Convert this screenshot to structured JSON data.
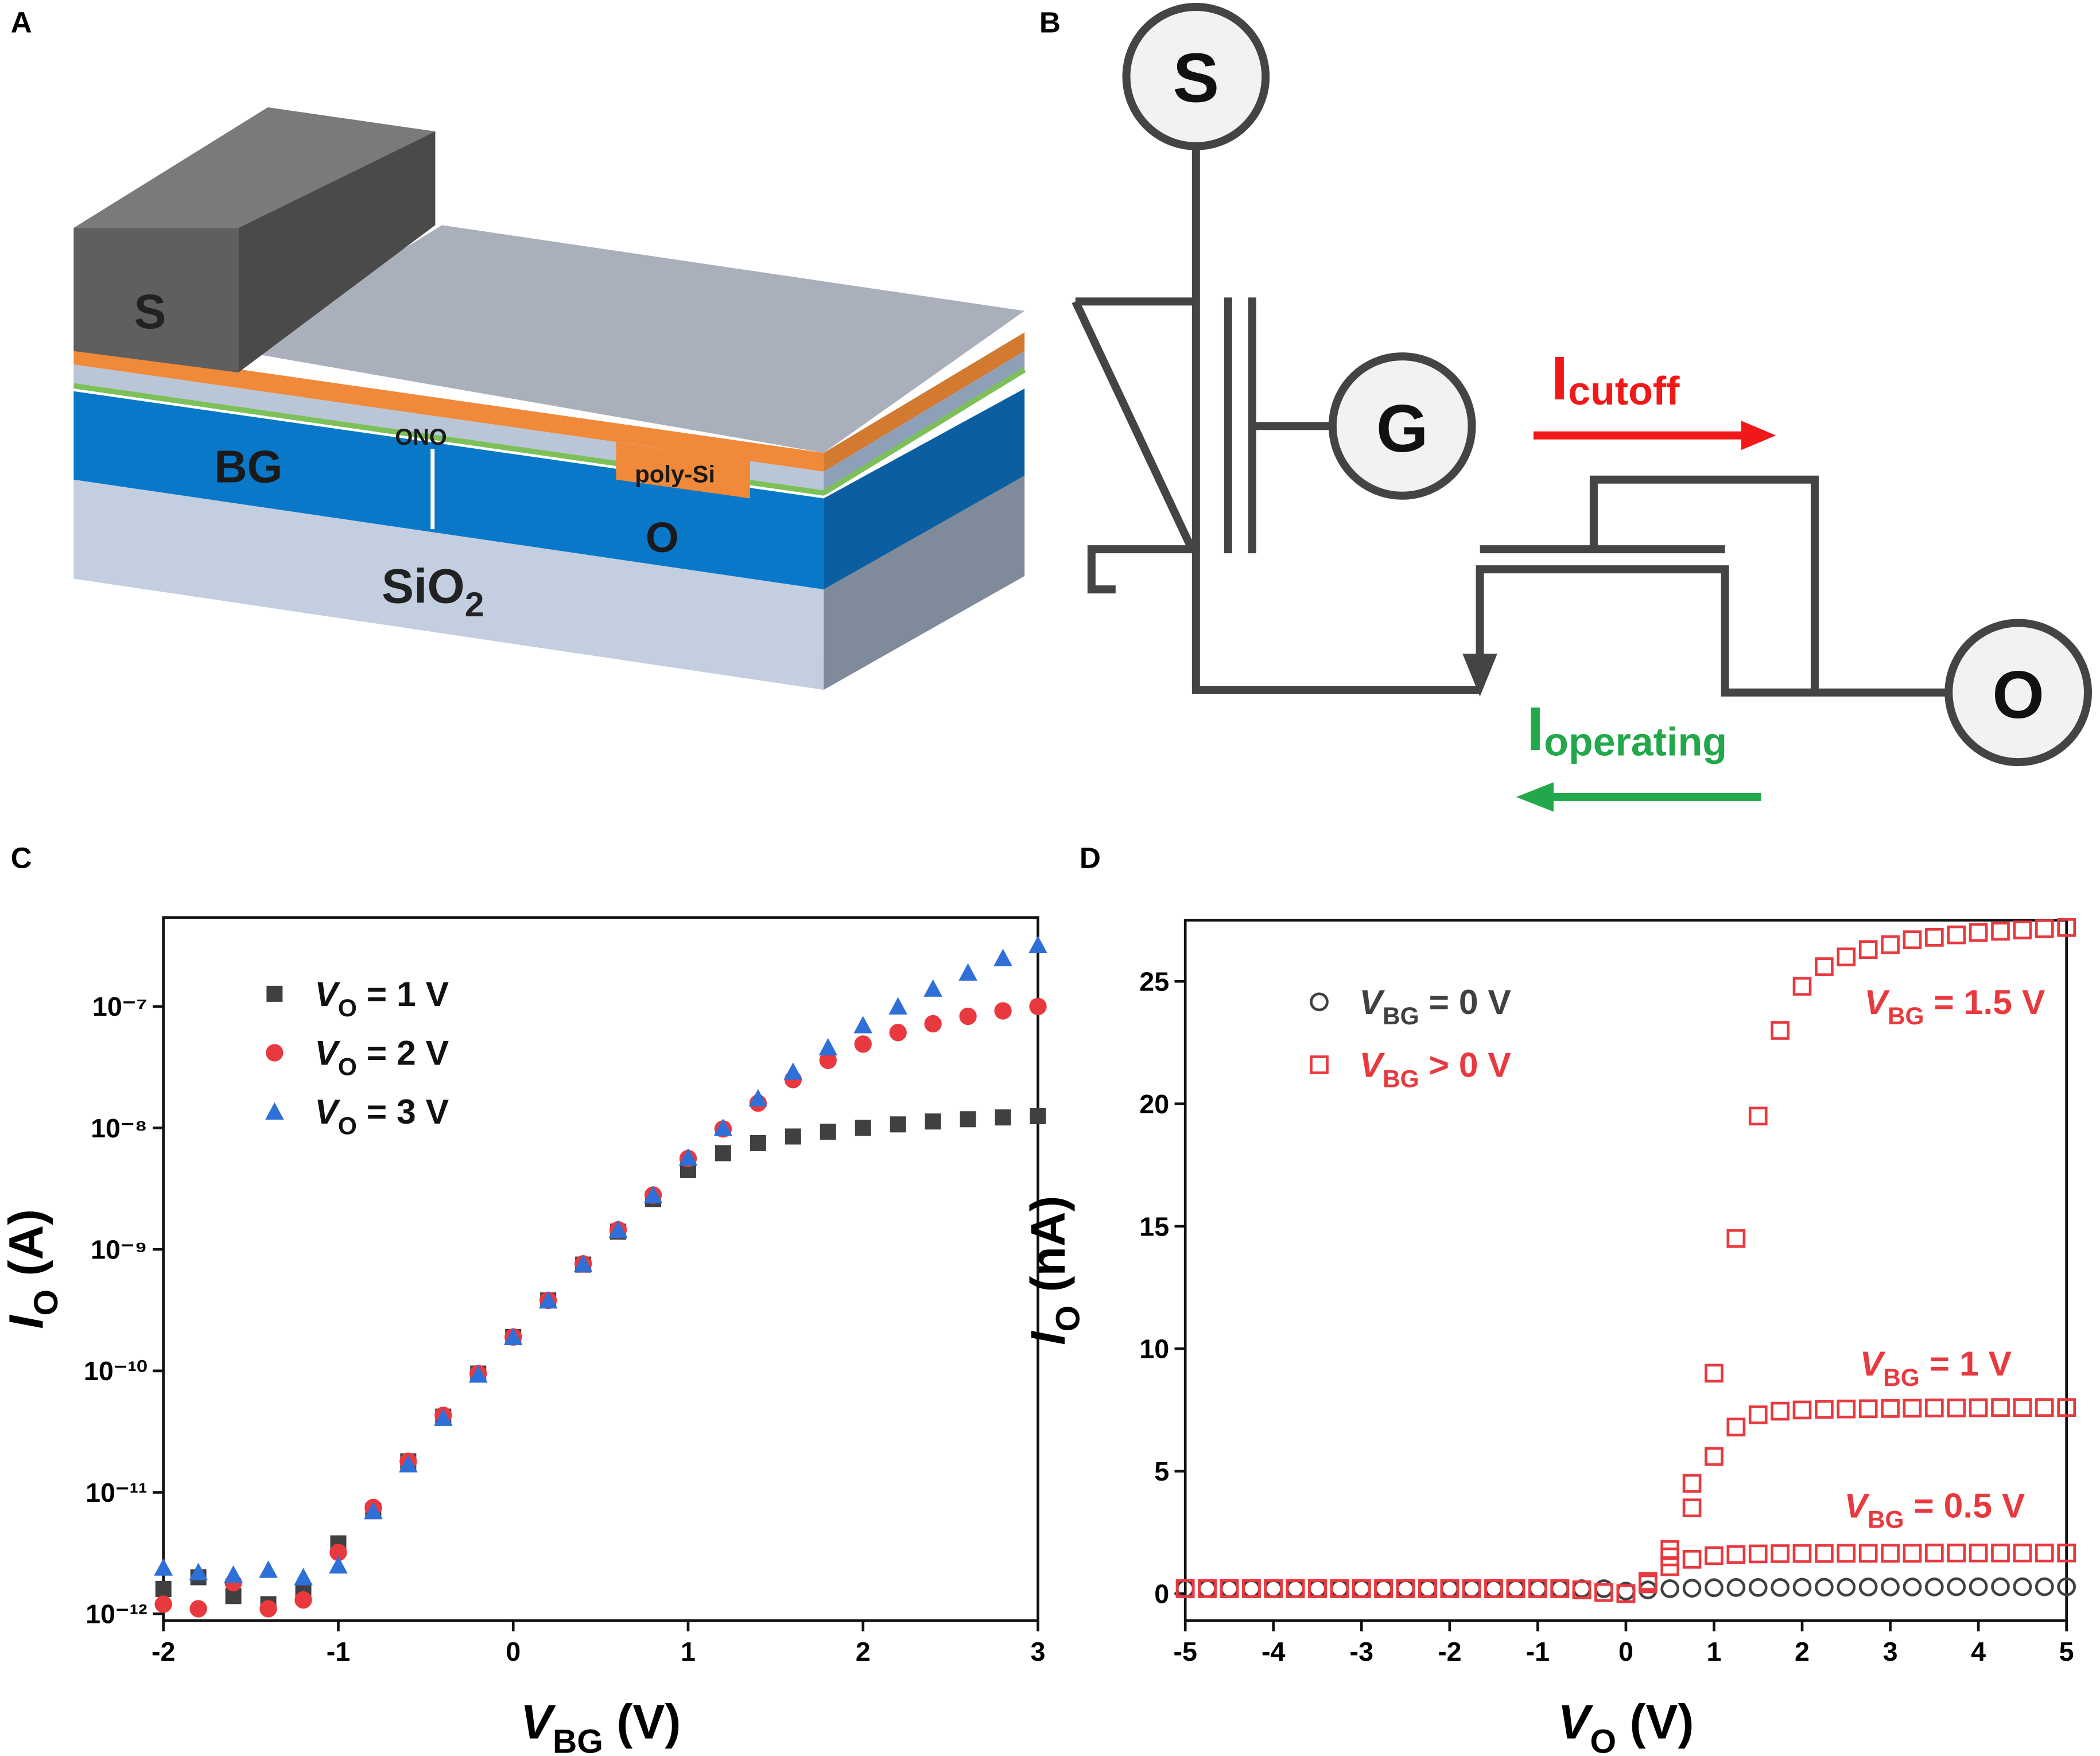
{
  "panel_labels": [
    "A",
    "B",
    "C",
    "D"
  ],
  "diagram_a": {
    "source": "S",
    "back_gate": "BG",
    "dielectric": "ONO",
    "channel": "poly-Si",
    "output": "O",
    "substrate": {
      "main": "SiO",
      "sub": "2"
    }
  },
  "diagram_b": {
    "source": "S",
    "gate": "G",
    "output": "O",
    "cutoff_current": {
      "main": "I",
      "sub": "cutoff"
    },
    "operating_current": {
      "main": "I",
      "sub": "operating"
    }
  },
  "chart_data": [
    {
      "type": "scatter",
      "log_y": true,
      "x": [
        -2,
        -1.8,
        -1.6,
        -1.4,
        -1.2,
        -1.0,
        -0.8,
        -0.6,
        -0.4,
        -0.2,
        0,
        0.2,
        0.4,
        0.6,
        0.8,
        1.0,
        1.2,
        1.4,
        1.6,
        1.8,
        2.0,
        2.2,
        2.4,
        2.6,
        2.8,
        3.0
      ],
      "xlim": [
        -2,
        3
      ],
      "xticks": [
        -2,
        -1,
        0,
        1,
        2,
        3
      ],
      "ylim": [
        8.8e-13,
        5.4e-07
      ],
      "yticks": [
        {
          "value": 1e-12,
          "label": "10⁻¹²"
        },
        {
          "value": 1e-11,
          "label": "10⁻¹¹"
        },
        {
          "value": 1e-10,
          "label": "10⁻¹⁰"
        },
        {
          "value": 1e-09,
          "label": "10⁻⁹"
        },
        {
          "value": 1e-08,
          "label": "10⁻⁸"
        },
        {
          "value": 1e-07,
          "label": "10⁻⁷"
        }
      ],
      "xlabel": {
        "main": "V",
        "sub": "BG",
        "rest": " (V)"
      },
      "ylabel": {
        "main": "I",
        "sub": "O",
        "rest": " (A)"
      },
      "series": [
        {
          "name": {
            "main": "V",
            "sub": "O",
            "rest": " = 1 V"
          },
          "color": "#404040",
          "marker": "square",
          "values": [
            1.6e-12,
            2e-12,
            1.4e-12,
            1.2e-12,
            1.5e-12,
            3.8e-12,
            7e-12,
            1.8e-11,
            4.2e-11,
            9.5e-11,
            1.9e-10,
            3.8e-10,
            7.5e-10,
            1.4e-09,
            2.6e-09,
            4.5e-09,
            6.2e-09,
            7.5e-09,
            8.5e-09,
            9.3e-09,
            1e-08,
            1.07e-08,
            1.13e-08,
            1.18e-08,
            1.22e-08,
            1.25e-08
          ]
        },
        {
          "name": {
            "main": "V",
            "sub": "O",
            "rest": " = 2 V"
          },
          "color": "#e8393f",
          "marker": "circle",
          "values": [
            1.2e-12,
            1.1e-12,
            1.8e-12,
            1.1e-12,
            1.3e-12,
            3.2e-12,
            7.5e-12,
            1.8e-11,
            4.3e-11,
            9.5e-11,
            1.9e-10,
            3.8e-10,
            7.6e-10,
            1.45e-09,
            2.8e-09,
            5.6e-09,
            9.8e-09,
            1.6e-08,
            2.5e-08,
            3.6e-08,
            4.9e-08,
            6.1e-08,
            7.2e-08,
            8.3e-08,
            9.2e-08,
            1e-07
          ]
        },
        {
          "name": {
            "main": "V",
            "sub": "O",
            "rest": " = 3 V"
          },
          "color": "#2f6fd8",
          "marker": "triangle",
          "values": [
            2.4e-12,
            2.2e-12,
            2.1e-12,
            2.3e-12,
            2e-12,
            2.5e-12,
            7e-12,
            1.7e-11,
            4.1e-11,
            9.3e-11,
            1.9e-10,
            3.8e-10,
            7.6e-10,
            1.45e-09,
            2.8e-09,
            5.7e-09,
            1e-08,
            1.75e-08,
            2.9e-08,
            4.6e-08,
            7e-08,
            1e-07,
            1.4e-07,
            1.9e-07,
            2.5e-07,
            3.2e-07
          ]
        }
      ]
    },
    {
      "type": "scatter",
      "log_y": false,
      "x": [
        -5,
        -4.75,
        -4.5,
        -4.25,
        -4,
        -3.75,
        -3.5,
        -3.25,
        -3,
        -2.75,
        -2.5,
        -2.25,
        -2,
        -1.75,
        -1.5,
        -1.25,
        -1,
        -0.75,
        -0.5,
        -0.25,
        0,
        0.25,
        0.5,
        0.75,
        1,
        1.25,
        1.5,
        1.75,
        2,
        2.25,
        2.5,
        2.75,
        3,
        3.25,
        3.5,
        3.75,
        4,
        4.25,
        4.5,
        4.75,
        5
      ],
      "xlim": [
        -5,
        5
      ],
      "xticks": [
        -5,
        -4,
        -3,
        -2,
        -1,
        0,
        1,
        2,
        3,
        4,
        5
      ],
      "ylim": [
        -1.1,
        27.5
      ],
      "yticks": [
        0,
        5,
        10,
        15,
        20,
        25
      ],
      "xlabel": {
        "main": "V",
        "sub": "O",
        "rest": " (V)"
      },
      "ylabel": {
        "main": "I",
        "sub": "O",
        "rest": " (nA)"
      },
      "series": [
        {
          "name": {
            "main": "V",
            "sub": "BG",
            "rest": " = 0 V"
          },
          "color": "#404040",
          "marker": "open-circle",
          "values": [
            0.2,
            0.2,
            0.2,
            0.2,
            0.2,
            0.2,
            0.2,
            0.2,
            0.2,
            0.2,
            0.2,
            0.2,
            0.2,
            0.2,
            0.2,
            0.2,
            0.2,
            0.2,
            0.2,
            0.2,
            0.1,
            0.15,
            0.2,
            0.22,
            0.24,
            0.25,
            0.25,
            0.25,
            0.26,
            0.26,
            0.26,
            0.27,
            0.27,
            0.27,
            0.27,
            0.28,
            0.28,
            0.28,
            0.28,
            0.28,
            0.28
          ]
        },
        {
          "name": {
            "main": "V",
            "sub": "BG",
            "rest": " > 0 V"
          },
          "color": "#e8393f",
          "marker": "open-square",
          "curves": [
            {
              "label": {
                "main": "V",
                "sub": "BG",
                "rest": " = 1.5 V"
              },
              "values": [
                0.2,
                0.2,
                0.2,
                0.2,
                0.2,
                0.2,
                0.2,
                0.2,
                0.2,
                0.2,
                0.2,
                0.2,
                0.2,
                0.2,
                0.2,
                0.2,
                0.2,
                0.2,
                0.15,
                0.05,
                0,
                0.5,
                1.8,
                4.5,
                9,
                14.5,
                19.5,
                23,
                24.8,
                25.6,
                26,
                26.3,
                26.5,
                26.7,
                26.8,
                26.9,
                27,
                27.05,
                27.1,
                27.15,
                27.2
              ]
            },
            {
              "label": {
                "main": "V",
                "sub": "BG",
                "rest": " = 1 V"
              },
              "values": [
                0.2,
                0.2,
                0.2,
                0.2,
                0.2,
                0.2,
                0.2,
                0.2,
                0.2,
                0.2,
                0.2,
                0.2,
                0.2,
                0.2,
                0.2,
                0.2,
                0.2,
                0.2,
                0.15,
                0.05,
                0,
                0.4,
                1.5,
                3.5,
                5.6,
                6.8,
                7.3,
                7.45,
                7.5,
                7.52,
                7.54,
                7.55,
                7.56,
                7.57,
                7.58,
                7.58,
                7.59,
                7.6,
                7.6,
                7.6,
                7.6
              ]
            },
            {
              "label": {
                "main": "V",
                "sub": "BG",
                "rest": " = 0.5 V"
              },
              "values": [
                0.2,
                0.2,
                0.2,
                0.2,
                0.2,
                0.2,
                0.2,
                0.2,
                0.2,
                0.2,
                0.2,
                0.2,
                0.2,
                0.2,
                0.2,
                0.2,
                0.2,
                0.2,
                0.15,
                0.05,
                0,
                0.5,
                1.1,
                1.4,
                1.55,
                1.6,
                1.62,
                1.63,
                1.64,
                1.64,
                1.65,
                1.65,
                1.65,
                1.65,
                1.66,
                1.66,
                1.66,
                1.66,
                1.66,
                1.66,
                1.66
              ]
            }
          ]
        }
      ]
    }
  ]
}
